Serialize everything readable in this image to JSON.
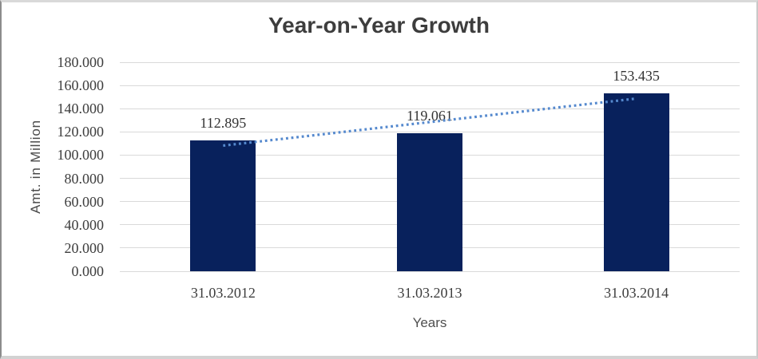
{
  "chart_data": {
    "type": "bar",
    "title": "Year-on-Year Growth",
    "categories": [
      "31.03.2012",
      "31.03.2013",
      "31.03.2014"
    ],
    "values": [
      112.895,
      119.061,
      153.435
    ],
    "data_labels": [
      "112.895",
      "119.061",
      "153.435"
    ],
    "xlabel": "Years",
    "ylabel": "Amt. in Million",
    "ylim": [
      0,
      180
    ],
    "ytick_step": 20,
    "ytick_labels": [
      "180.000",
      "160.000",
      "140.000",
      "120.000",
      "100.000",
      "80.000",
      "60.000",
      "40.000",
      "20.000",
      "0.000"
    ],
    "grid": true,
    "legend": "none",
    "colors": {
      "bar": "#08215C",
      "gridline": "#D9D9D9",
      "title_text": "#3D3D3D",
      "tick_text": "#3D3D3D",
      "axis_title_text": "#4A4A4A",
      "trendline": "#5589CE"
    },
    "trendline": {
      "type": "linear",
      "style": "dotted",
      "color": "#5589CE",
      "fit_values_at_categories": [
        108.194,
        128.464,
        148.735
      ]
    }
  }
}
